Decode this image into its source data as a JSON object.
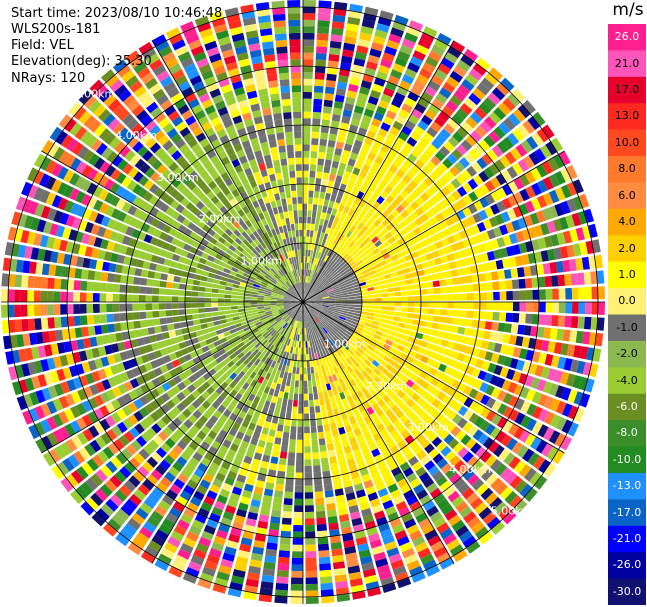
{
  "header": {
    "start_time": "Start time: 2023/08/10 10:46:48",
    "instrument": "WLS200s-181",
    "field": "Field: VEL",
    "elevation": "Elevation(deg): 35.30",
    "nrays": "NRays: 120"
  },
  "colorbar": {
    "unit": "m/s",
    "ticks": [
      "26.0",
      "21.0",
      "17.0",
      "13.0",
      "10.0",
      "8.0",
      "6.0",
      "4.0",
      "2.0",
      "1.0",
      "0.0",
      "-1.0",
      "-2.0",
      "-4.0",
      "-6.0",
      "-8.0",
      "-10.0",
      "-13.0",
      "-17.0",
      "-21.0",
      "-26.0",
      "-30.0"
    ],
    "colors": [
      "#ff1f8f",
      "#ff55bb",
      "#e8002c",
      "#ff2a1f",
      "#ff4a1f",
      "#ff7a2a",
      "#ff8c40",
      "#ffa800",
      "#ffd000",
      "#ffff00",
      "#fff176",
      "#707070",
      "#8cb850",
      "#9acd32",
      "#6b8e23",
      "#3a8f2a",
      "#228b22",
      "#1e90ff",
      "#0a64c8",
      "#0000ff",
      "#0000a0",
      "#101070"
    ],
    "dark_labels": [
      true,
      false,
      false,
      false,
      false,
      false,
      false,
      false,
      false,
      false,
      false,
      false,
      false,
      false,
      true,
      true,
      true,
      true,
      true,
      true,
      true,
      true
    ]
  },
  "ring_labels": [
    "1.00km",
    "2.00km",
    "3.00km",
    "4.00km",
    "5.00km"
  ],
  "ppi": {
    "center_color": "#707070",
    "inner_colors": [
      "#707070",
      "#fff200",
      "#ffd000",
      "#9acd32",
      "#6b8e23"
    ]
  }
}
